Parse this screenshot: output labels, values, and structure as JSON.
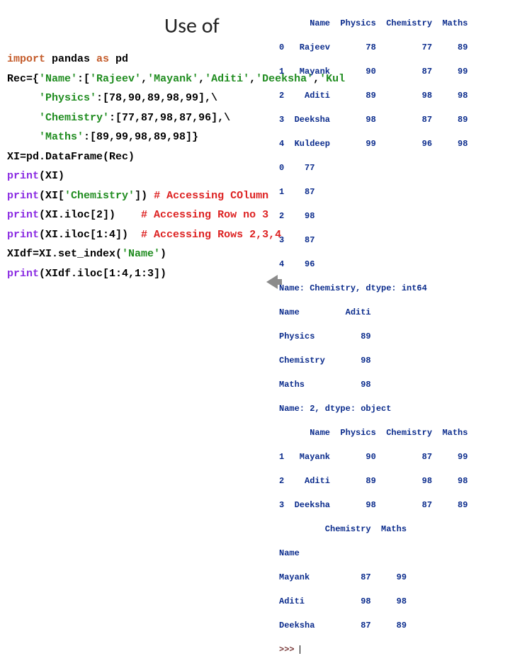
{
  "title": "Use of",
  "colors": {
    "keyword": "#c45b2a",
    "string": "#1f8c1f",
    "func": "#8a2be2",
    "comment": "#d22",
    "output": "#0a2b8c",
    "prompt": "#7a3b3b",
    "text": "#000000",
    "bg": "#ffffff"
  },
  "code": {
    "l1_import": "import",
    "l1_lib": " pandas ",
    "l1_as": "as",
    "l1_alias": " pd",
    "l2a": "Rec={",
    "l2b": "'Name'",
    "l2c": ":[",
    "l2d": "'Rajeev'",
    "l2e": ",",
    "l2f": "'Mayank'",
    "l2g": ",",
    "l2h": "'Aditi'",
    "l2i": ",",
    "l2j": "'Deeksha'",
    "l2k": ",",
    "l2l": "'Kul",
    "l3a": "     ",
    "l3b": "'Physics'",
    "l3c": ":[78,90,89,98,99],\\",
    "l4a": "     ",
    "l4b": "'Chemistry'",
    "l4c": ":[77,87,98,87,96],\\",
    "l5a": "     ",
    "l5b": "'Maths'",
    "l5c": ":[89,99,98,89,98]}",
    "l6a": "XI=pd.DataFrame(Rec)",
    "l7a": "print",
    "l7b": "(XI)",
    "l8a": "print",
    "l8b": "(XI[",
    "l8c": "'Chemistry'",
    "l8d": "]) ",
    "l8e": "# Accessing COlumn",
    "l9a": "print",
    "l9b": "(XI.iloc[2])    ",
    "l9e": "# Accessing Row no 3",
    "l10a": "print",
    "l10b": "(XI.iloc[1:4])  ",
    "l10e": "# Accessing Rows 2,3,4",
    "l11a": "XIdf=XI.set_index(",
    "l11b": "'Name'",
    "l11c": ")",
    "l12a": "print",
    "l12b": "(XIdf.iloc[1:4,1:3])"
  },
  "output": {
    "hdr": "      Name  Physics  Chemistry  Maths",
    "r0": "0   Rajeev       78         77     89",
    "r1": "1   Mayank       90         87     99",
    "r2": "2    Aditi       89         98     98",
    "r3": "3  Deeksha       98         87     89",
    "r4": "4  Kuldeep       99         96     98",
    "c0": "0    77",
    "c1": "1    87",
    "c2": "2    98",
    "c3": "3    87",
    "c4": "4    96",
    "cname": "Name: Chemistry, dtype: int64",
    "row_name": "Name         Aditi",
    "row_phy": "Physics         89",
    "row_chem": "Chemistry       98",
    "row_math": "Maths           98",
    "row_dtype": "Name: 2, dtype: object",
    "sl_hdr": "      Name  Physics  Chemistry  Maths",
    "sl1": "1   Mayank       90         87     99",
    "sl2": "2    Aditi       89         98     98",
    "sl3": "3  Deeksha       98         87     89",
    "idx_hdr": "         Chemistry  Maths",
    "idx_name": "Name",
    "idx1": "Mayank          87     99",
    "idx2": "Aditi           98     98",
    "idx3": "Deeksha         87     89",
    "prompt": ">>> "
  }
}
